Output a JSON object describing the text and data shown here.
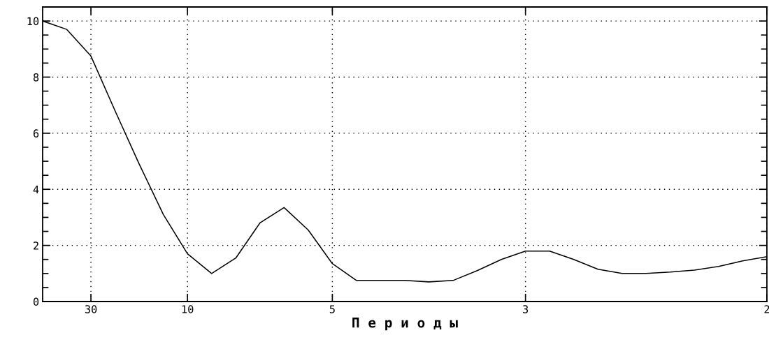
{
  "chart_data": {
    "type": "line",
    "xlabel": "П е р и о д ы",
    "categories": [
      null,
      null,
      "30",
      null,
      null,
      null,
      "10",
      null,
      null,
      null,
      null,
      null,
      "5",
      null,
      null,
      null,
      null,
      null,
      null,
      null,
      "3",
      null,
      null,
      null,
      null,
      null,
      null,
      null,
      null,
      null,
      "2"
    ],
    "series": [
      {
        "color": "#000000",
        "values": [
          10.0,
          9.7,
          8.75,
          6.8,
          4.9,
          3.1,
          1.7,
          1.0,
          1.55,
          2.8,
          3.35,
          2.55,
          1.35,
          0.75,
          0.75,
          0.75,
          0.7,
          0.75,
          1.1,
          1.5,
          1.8,
          1.8,
          1.5,
          1.15,
          1.0,
          1.0,
          1.05,
          1.12,
          1.25,
          1.45,
          1.6
        ]
      }
    ],
    "ylim": [
      0,
      10.5
    ],
    "yticks": [
      0,
      2,
      4,
      6,
      8,
      10
    ],
    "grid": true,
    "marker": "none",
    "line_style": "solid"
  }
}
